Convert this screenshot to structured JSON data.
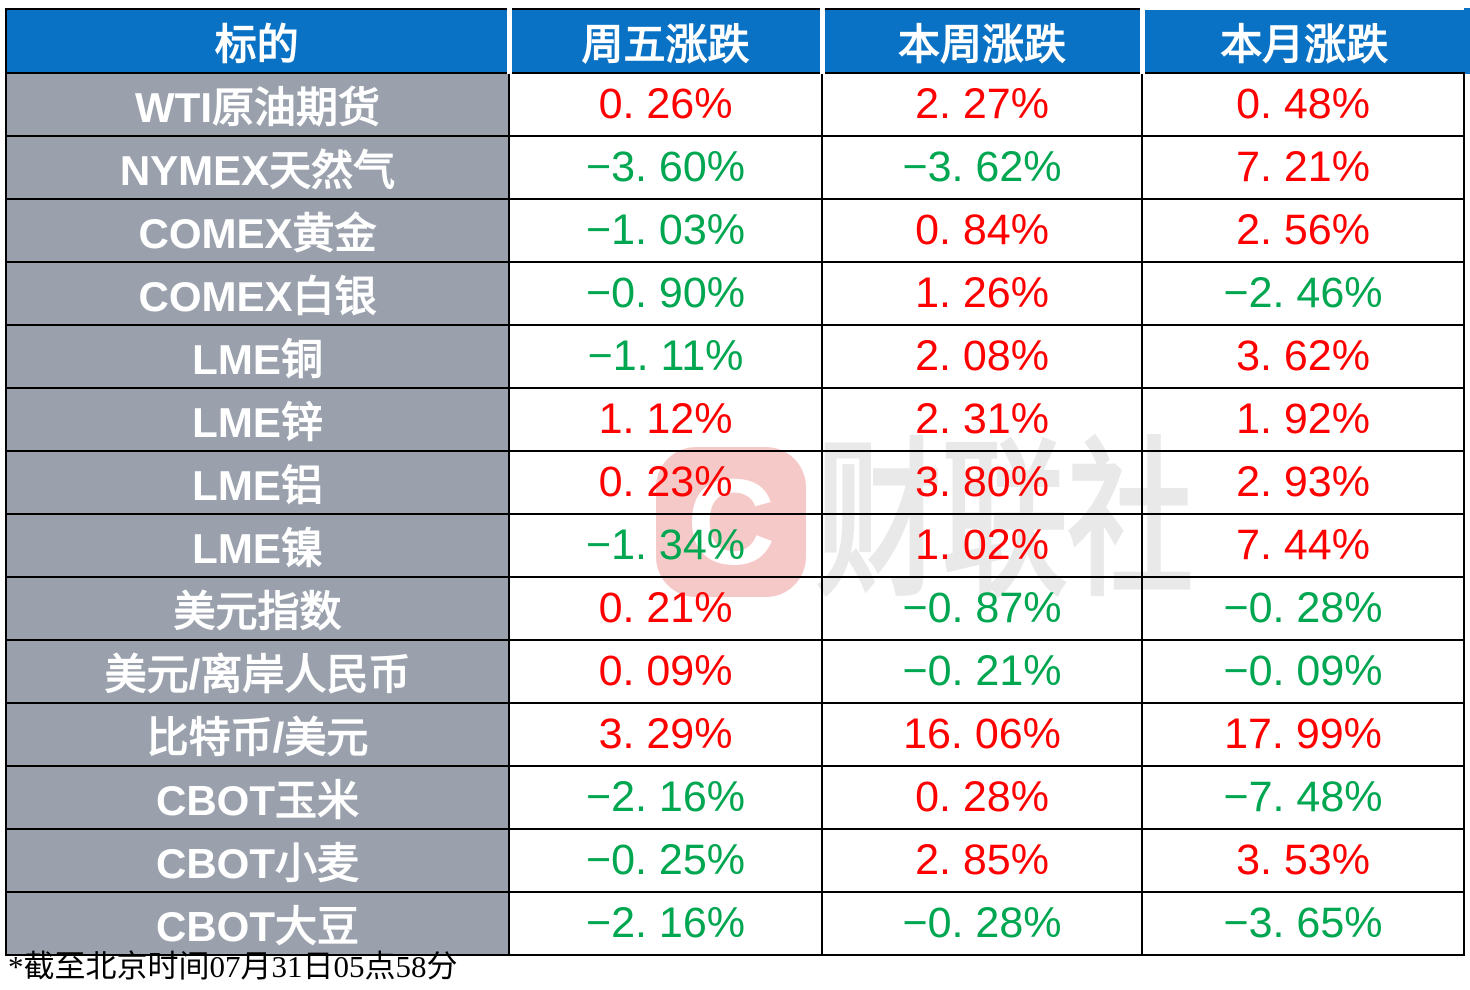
{
  "table": {
    "columns": [
      "标的",
      "周五涨跌",
      "本周涨跌",
      "本月涨跌"
    ],
    "rows": [
      {
        "label": "WTI原油期货",
        "values": [
          "0. 26%",
          "2. 27%",
          "0. 48%"
        ]
      },
      {
        "label": "NYMEX天然气",
        "values": [
          "−3. 60%",
          "−3. 62%",
          "7. 21%"
        ]
      },
      {
        "label": "COMEX黄金",
        "values": [
          "−1. 03%",
          "0. 84%",
          "2. 56%"
        ]
      },
      {
        "label": "COMEX白银",
        "values": [
          "−0. 90%",
          "1. 26%",
          "−2. 46%"
        ]
      },
      {
        "label": "LME铜",
        "values": [
          "−1. 11%",
          "2. 08%",
          "3. 62%"
        ]
      },
      {
        "label": "LME锌",
        "values": [
          "1. 12%",
          "2. 31%",
          "1. 92%"
        ]
      },
      {
        "label": "LME铝",
        "values": [
          "0. 23%",
          "3. 80%",
          "2. 93%"
        ]
      },
      {
        "label": "LME镍",
        "values": [
          "−1. 34%",
          "1. 02%",
          "7. 44%"
        ]
      },
      {
        "label": "美元指数",
        "values": [
          "0. 21%",
          "−0. 87%",
          "−0. 28%"
        ]
      },
      {
        "label": "美元/离岸人民币",
        "values": [
          "0. 09%",
          "−0. 21%",
          "−0. 09%"
        ]
      },
      {
        "label": "比特币/美元",
        "values": [
          "3. 29%",
          "16. 06%",
          "17. 99%"
        ]
      },
      {
        "label": "CBOT玉米",
        "values": [
          "−2. 16%",
          "0. 28%",
          "−7. 48%"
        ]
      },
      {
        "label": "CBOT小麦",
        "values": [
          "−0. 25%",
          "2. 85%",
          "3. 53%"
        ]
      },
      {
        "label": "CBOT大豆",
        "values": [
          "−2. 16%",
          "−0. 28%",
          "−3. 65%"
        ]
      }
    ]
  },
  "footer": {
    "note": "*截至北京时间07月31日05点58分"
  },
  "watermark": {
    "logo_letter": "C",
    "brand_text": "财联社"
  },
  "colors": {
    "header_bg": "#0a72c4",
    "row_label_bg": "#9aa1ad",
    "up": "#ff0000",
    "down": "#00a650",
    "border": "#000000",
    "watermark_pink": "#f6c9c9",
    "watermark_gray": "#e9e9e9"
  },
  "chart_data": {
    "type": "table",
    "title": "",
    "columns": [
      "标的",
      "周五涨跌",
      "本周涨跌",
      "本月涨跌"
    ],
    "rows": [
      [
        "WTI原油期货",
        0.26,
        2.27,
        0.48
      ],
      [
        "NYMEX天然气",
        -3.6,
        -3.62,
        7.21
      ],
      [
        "COMEX黄金",
        -1.03,
        0.84,
        2.56
      ],
      [
        "COMEX白银",
        -0.9,
        1.26,
        -2.46
      ],
      [
        "LME铜",
        -1.11,
        2.08,
        3.62
      ],
      [
        "LME锌",
        1.12,
        2.31,
        1.92
      ],
      [
        "LME铝",
        0.23,
        3.8,
        2.93
      ],
      [
        "LME镍",
        -1.34,
        1.02,
        7.44
      ],
      [
        "美元指数",
        0.21,
        -0.87,
        -0.28
      ],
      [
        "美元/离岸人民币",
        0.09,
        -0.21,
        -0.09
      ],
      [
        "比特币/美元",
        3.29,
        16.06,
        17.99
      ],
      [
        "CBOT玉米",
        -2.16,
        0.28,
        -7.48
      ],
      [
        "CBOT小麦",
        -0.25,
        2.85,
        3.53
      ],
      [
        "CBOT大豆",
        -2.16,
        -0.28,
        -3.65
      ]
    ],
    "units": "percent",
    "legend": "positive values red (up), negative values green (down)",
    "footnote": "*截至北京时间07月31日05点58分"
  }
}
